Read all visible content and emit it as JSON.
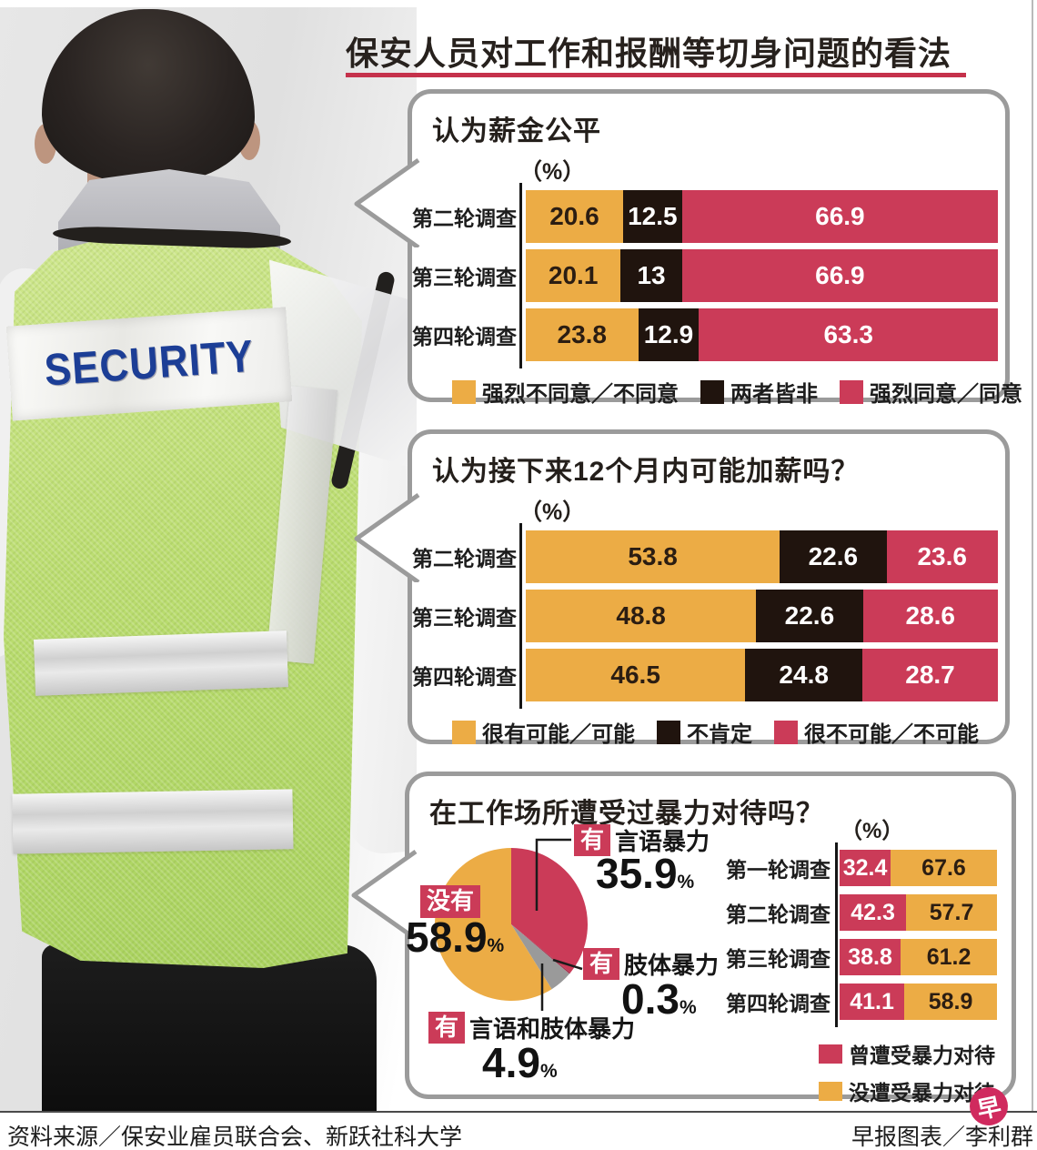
{
  "page": {
    "title": "保安人员对工作和报酬等切身问题的看法",
    "source": "资料来源／保安业雇员联合会、新跃社科大学",
    "credit": "早报图表／李利群",
    "logo_glyph": "早",
    "photo_vest_text": "SECURITY",
    "percent_symbol": "%"
  },
  "colors": {
    "yellow": "#ecac45",
    "dark": "#20140e",
    "red": "#cb3b58",
    "gray_slice": "#9a9a9a",
    "title_underline": "#c5314b",
    "panel_border": "#9b9b9b",
    "logo_pink": "#d02a5e"
  },
  "chart_data": [
    {
      "id": "salary-fairness",
      "type": "bar",
      "stacked": true,
      "title": "认为薪金公平",
      "unit": "（%）",
      "xlim": [
        0,
        100
      ],
      "legend_position": "bottom",
      "categories": [
        "第二轮调查",
        "第三轮调查",
        "第四轮调查"
      ],
      "series": [
        {
          "name": "强烈不同意／不同意",
          "color": "#ecac45",
          "text_color": "#2b1d12",
          "values": [
            20.6,
            20.1,
            23.8
          ],
          "labels": [
            "20.6",
            "20.1",
            "23.8"
          ]
        },
        {
          "name": "两者皆非",
          "color": "#20140e",
          "text_color": "#ffffff",
          "values": [
            12.5,
            13,
            12.9
          ],
          "labels": [
            "12.5",
            "13",
            "12.9"
          ]
        },
        {
          "name": "强烈同意／同意",
          "color": "#cb3b58",
          "text_color": "#ffffff",
          "values": [
            66.9,
            66.9,
            63.3
          ],
          "labels": [
            "66.9",
            "66.9",
            "63.3"
          ]
        }
      ]
    },
    {
      "id": "raise-next-12-months",
      "type": "bar",
      "stacked": true,
      "title": "认为接下来12个月内可能加薪吗？",
      "unit": "（%）",
      "xlim": [
        0,
        100
      ],
      "legend_position": "bottom",
      "categories": [
        "第二轮调查",
        "第三轮调查",
        "第四轮调查"
      ],
      "series": [
        {
          "name": "很有可能／可能",
          "color": "#ecac45",
          "text_color": "#2b1d12",
          "values": [
            53.8,
            48.8,
            46.5
          ],
          "labels": [
            "53.8",
            "48.8",
            "46.5"
          ]
        },
        {
          "name": "不肯定",
          "color": "#20140e",
          "text_color": "#ffffff",
          "values": [
            22.6,
            22.6,
            24.8
          ],
          "labels": [
            "22.6",
            "22.6",
            "24.8"
          ]
        },
        {
          "name": "很不可能／不可能",
          "color": "#cb3b58",
          "text_color": "#ffffff",
          "values": [
            23.6,
            28.6,
            28.7
          ],
          "labels": [
            "23.6",
            "28.6",
            "28.7"
          ]
        }
      ]
    },
    {
      "id": "workplace-violence-pie",
      "type": "pie",
      "title": "在工作场所遭受过暴力对待吗？",
      "start_angle": "top-clockwise",
      "slices": [
        {
          "label_box": "有",
          "label": "言语暴力",
          "value": 35.9,
          "display": "35.9",
          "color": "#cb3b58"
        },
        {
          "label_box": "有",
          "label": "肢体暴力",
          "value": 0.3,
          "display": "0.3",
          "color": "#a83350"
        },
        {
          "label_box": "有",
          "label": "言语和肢体暴力",
          "value": 4.9,
          "display": "4.9",
          "color": "#9a9a9a"
        },
        {
          "label_box": "没有",
          "label": "",
          "value": 58.9,
          "display": "58.9",
          "color": "#ecac45"
        }
      ]
    },
    {
      "id": "violence-by-round",
      "type": "bar",
      "stacked": true,
      "unit": "（%）",
      "xlim": [
        0,
        100
      ],
      "legend_position": "bottom-right",
      "categories": [
        "第一轮调查",
        "第二轮调查",
        "第三轮调查",
        "第四轮调查"
      ],
      "series": [
        {
          "name": "曾遭受暴力对待",
          "color": "#cb3b58",
          "text_color": "#ffffff",
          "values": [
            32.4,
            42.3,
            38.8,
            41.1
          ],
          "labels": [
            "32.4",
            "42.3",
            "38.8",
            "41.1"
          ]
        },
        {
          "name": "没遭受暴力对待",
          "color": "#ecac45",
          "text_color": "#2b1d12",
          "values": [
            67.6,
            57.7,
            61.2,
            58.9
          ],
          "labels": [
            "67.6",
            "57.7",
            "61.2",
            "58.9"
          ]
        }
      ]
    }
  ]
}
